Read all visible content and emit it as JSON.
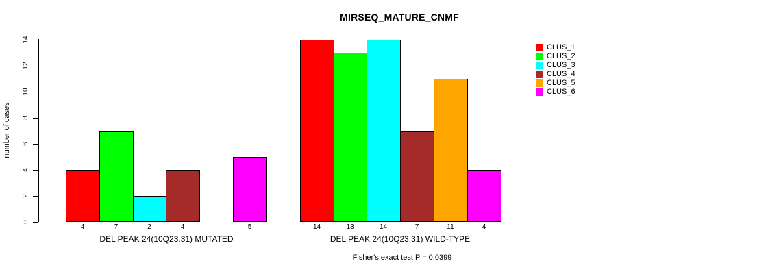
{
  "chart_data": {
    "type": "bar",
    "title": "MIRSEQ_MATURE_CNMF",
    "ylabel": "number of cases",
    "xlabel": "",
    "ylim": [
      0,
      14
    ],
    "yticks": [
      0,
      2,
      4,
      6,
      8,
      10,
      12,
      14
    ],
    "grid": false,
    "legend_position": "right",
    "categories": [
      "DEL PEAK 24(10Q23.31) MUTATED",
      "DEL PEAK 24(10Q23.31) WILD-TYPE"
    ],
    "series": [
      {
        "name": "CLUS_1",
        "color": "#FF0000",
        "values": [
          4,
          14
        ]
      },
      {
        "name": "CLUS_2",
        "color": "#00FF00",
        "values": [
          7,
          13
        ]
      },
      {
        "name": "CLUS_3",
        "color": "#00FFFF",
        "values": [
          2,
          14
        ]
      },
      {
        "name": "CLUS_4",
        "color": "#A52A2A",
        "values": [
          4,
          7
        ]
      },
      {
        "name": "CLUS_5",
        "color": "#FFA500",
        "values": [
          0,
          11
        ]
      },
      {
        "name": "CLUS_6",
        "color": "#FF00FF",
        "values": [
          5,
          4
        ]
      }
    ],
    "bar_value_labels_shown": true,
    "zero_bars_unlabeled": true,
    "annotation": "Fisher's exact test P = 0.0399"
  }
}
